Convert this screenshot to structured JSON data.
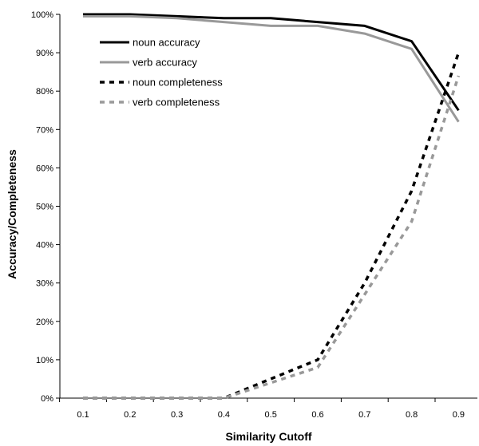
{
  "chart_data": {
    "type": "line",
    "title": "",
    "xlabel": "Similarity Cutoff",
    "ylabel": "Accuracy/Completeness",
    "x": [
      0.1,
      0.2,
      0.3,
      0.4,
      0.5,
      0.6,
      0.7,
      0.8,
      0.9
    ],
    "x_tick_labels": [
      "0.1",
      "0.2",
      "0.3",
      "0.4",
      "0.5",
      "0.6",
      "0.7",
      "0.8",
      "0.9"
    ],
    "y_tick_labels": [
      "0%",
      "10%",
      "20%",
      "30%",
      "40%",
      "50%",
      "60%",
      "70%",
      "80%",
      "90%",
      "100%"
    ],
    "ylim": [
      0,
      100
    ],
    "grid": false,
    "legend_position": "top-left",
    "series": [
      {
        "name": "noun accuracy",
        "values": [
          100,
          100,
          99.5,
          99,
          99,
          98,
          97,
          93,
          75
        ],
        "color": "#000000",
        "style": "solid"
      },
      {
        "name": "verb accuracy",
        "values": [
          99.5,
          99.5,
          99,
          98,
          97,
          97,
          95,
          91,
          72
        ],
        "color": "#999999",
        "style": "solid"
      },
      {
        "name": "noun completeness",
        "values": [
          0,
          0,
          0,
          0,
          5,
          10,
          30,
          54,
          90
        ],
        "color": "#000000",
        "style": "dashed"
      },
      {
        "name": "verb completeness",
        "values": [
          0,
          0,
          0,
          0,
          4,
          8,
          27,
          46,
          84
        ],
        "color": "#999999",
        "style": "dashed"
      }
    ]
  }
}
